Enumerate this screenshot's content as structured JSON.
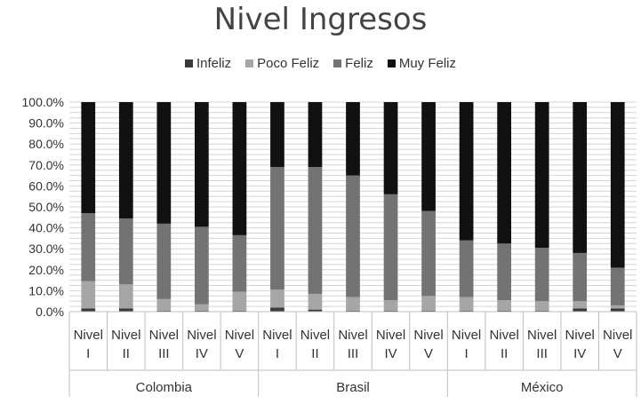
{
  "chart_data": {
    "type": "bar",
    "stacked": true,
    "title": "Nivel Ingresos",
    "legend_position": "top",
    "grid": true,
    "ylim": [
      0,
      100
    ],
    "y_ticks": [
      "0.0%",
      "10.0%",
      "20.0%",
      "30.0%",
      "40.0%",
      "50.0%",
      "60.0%",
      "70.0%",
      "80.0%",
      "90.0%",
      "100.0%"
    ],
    "groups": [
      "Colombia",
      "Brasil",
      "México"
    ],
    "categories": [
      [
        "Nivel",
        "I"
      ],
      [
        "Nivel",
        "II"
      ],
      [
        "Nivel",
        "III"
      ],
      [
        "Nivel",
        "IV"
      ],
      [
        "Nivel",
        "V"
      ],
      [
        "Nivel",
        "I"
      ],
      [
        "Nivel",
        "II"
      ],
      [
        "Nivel",
        "III"
      ],
      [
        "Nivel",
        "IV"
      ],
      [
        "Nivel",
        "V"
      ],
      [
        "Nivel",
        "I"
      ],
      [
        "Nivel",
        "II"
      ],
      [
        "Nivel",
        "III"
      ],
      [
        "Nivel",
        "IV"
      ],
      [
        "Nivel",
        "V"
      ]
    ],
    "series": [
      {
        "name": "Infeliz",
        "color": "#3a3a3a",
        "values": [
          1.5,
          1.5,
          0.5,
          0.5,
          0.5,
          2.0,
          1.0,
          0.5,
          0.5,
          0.5,
          0.5,
          0.5,
          0.5,
          1.5,
          1.5
        ]
      },
      {
        "name": "Poco Feliz",
        "color": "#a6a6a6",
        "values": [
          13,
          11.5,
          5.5,
          3,
          9,
          8.5,
          7.5,
          6.5,
          5,
          7,
          6.5,
          5,
          4.5,
          3.5,
          1.5
        ]
      },
      {
        "name": "Feliz",
        "color": "#737373",
        "values": [
          32.5,
          31.5,
          36,
          37,
          27,
          58.5,
          60.5,
          58,
          50.5,
          40.5,
          27,
          27,
          25.5,
          23,
          18
        ]
      },
      {
        "name": "Muy Feliz",
        "color": "#111111",
        "values": [
          53,
          55.5,
          58,
          59.5,
          63.5,
          31,
          31,
          35,
          44,
          52,
          66,
          67.5,
          69.5,
          72,
          79
        ]
      }
    ]
  }
}
